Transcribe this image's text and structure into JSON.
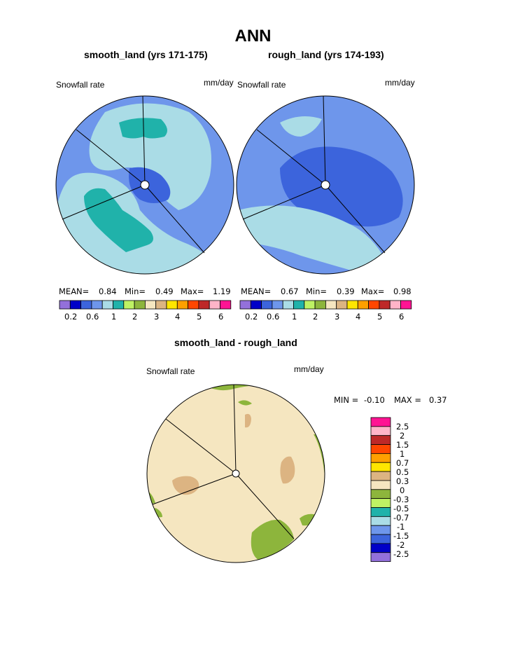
{
  "page": {
    "title": "ANN",
    "diff_title": "smooth_land - rough_land"
  },
  "colors": {
    "bar": [
      "#9370DB",
      "#0000C8",
      "#3C64DC",
      "#6E96EB",
      "#AADCE6",
      "#20B2AA",
      "#BEF264",
      "#8DB53C",
      "#F5E6C0",
      "#DCB482",
      "#FFE600",
      "#FFA000",
      "#FF4600",
      "#BE2828",
      "#FFB4C8",
      "#FF1493"
    ],
    "diff_scale": [
      "#9370DB",
      "#0000C8",
      "#3C64DC",
      "#6E96EB",
      "#AADCE6",
      "#20B2AA",
      "#BEF264",
      "#8DB53C",
      "#F5E6C0",
      "#DCB482",
      "#FFE600",
      "#FFA000",
      "#FF4600",
      "#BE2828",
      "#FFB4C8",
      "#FF1493"
    ]
  },
  "chart_data": [
    {
      "type": "heatmap",
      "title": "smooth_land (yrs 171-175)",
      "variable": "Snowfall rate",
      "units": "mm/day",
      "projection": "polar",
      "stats": {
        "mean_label": "MEAN=",
        "mean": "0.84",
        "min_label": "Min=",
        "min": "0.49",
        "max_label": "Max=",
        "max": "1.19"
      },
      "colorbar_labels": [
        "0.2",
        "0.6",
        "1",
        "2",
        "3",
        "4",
        "5",
        "6"
      ]
    },
    {
      "type": "heatmap",
      "title": "rough_land (yrs 174-193)",
      "variable": "Snowfall rate",
      "units": "mm/day",
      "projection": "polar",
      "stats": {
        "mean_label": "MEAN=",
        "mean": "0.67",
        "min_label": "Min=",
        "min": "0.39",
        "max_label": "Max=",
        "max": "0.98"
      },
      "colorbar_labels": [
        "0.2",
        "0.6",
        "1",
        "2",
        "3",
        "4",
        "5",
        "6"
      ]
    },
    {
      "type": "heatmap",
      "title": "smooth_land - rough_land",
      "variable": "Snowfall rate",
      "units": "mm/day",
      "projection": "polar",
      "stats": {
        "min_label": "MIN =",
        "min": "-0.10",
        "max_label": "MAX =",
        "max": "0.37"
      },
      "colorbar_labels": [
        "2.5",
        "2",
        "1.5",
        "1",
        "0.7",
        "0.5",
        "0.3",
        "0",
        "-0.3",
        "-0.5",
        "-0.7",
        "-1",
        "-1.5",
        "-2",
        "-2.5"
      ]
    }
  ]
}
